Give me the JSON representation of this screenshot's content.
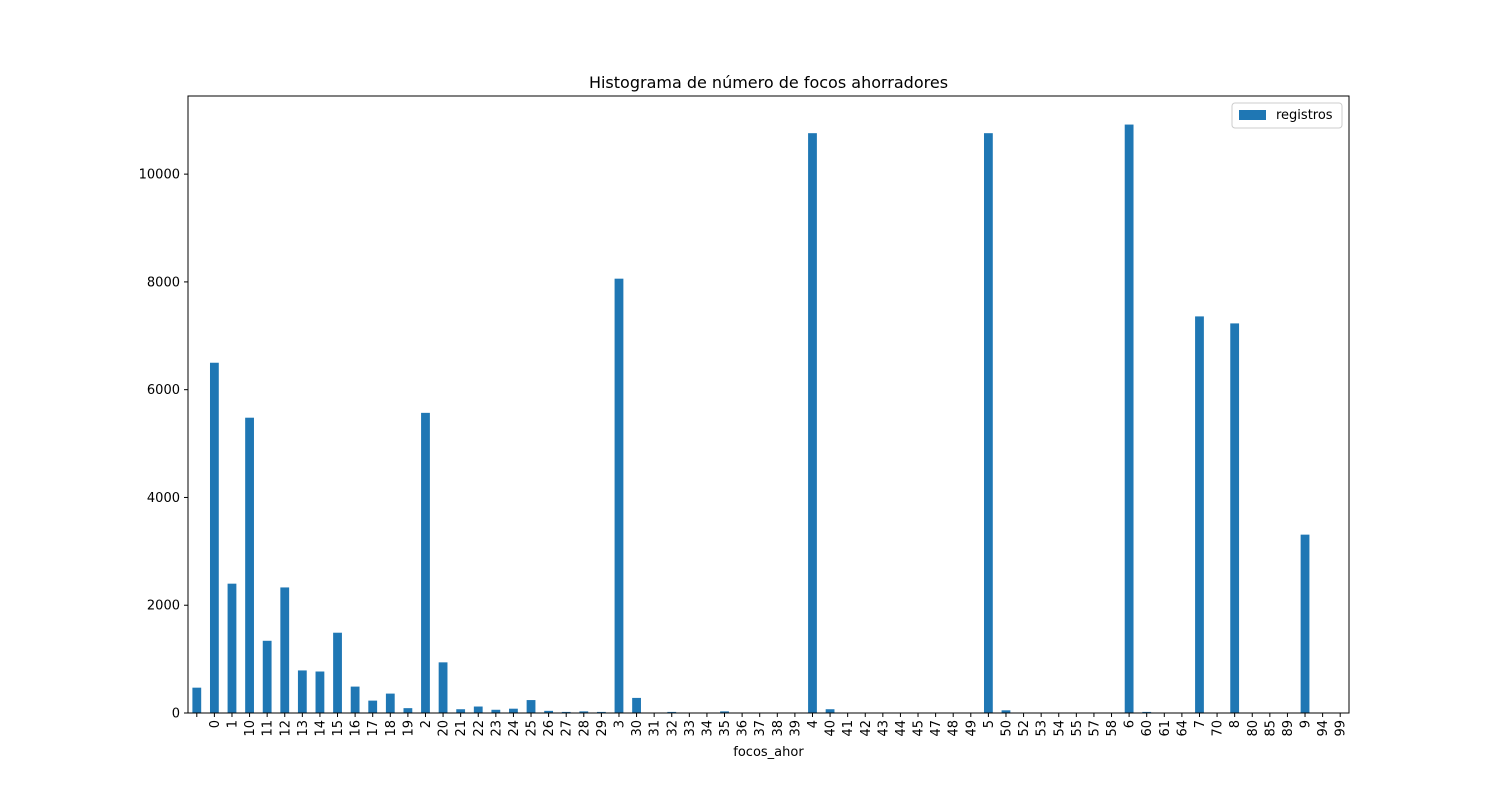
{
  "chart_data": {
    "type": "bar",
    "title": "Histograma de número de focos ahorradores",
    "xlabel": "focos_ahor",
    "ylabel": "",
    "ylim": [
      0,
      11450
    ],
    "yticks": [
      0,
      2000,
      4000,
      6000,
      8000,
      10000
    ],
    "grid": false,
    "legend_position": "top-right",
    "colors": {
      "bar": "#1f77b4",
      "axis": "#000000",
      "background": "#ffffff"
    },
    "categories": [
      "",
      "0",
      "1",
      "10",
      "11",
      "12",
      "13",
      "14",
      "15",
      "16",
      "17",
      "18",
      "19",
      "2",
      "20",
      "21",
      "22",
      "23",
      "24",
      "25",
      "26",
      "27",
      "28",
      "29",
      "3",
      "30",
      "31",
      "32",
      "33",
      "34",
      "35",
      "36",
      "37",
      "38",
      "39",
      "4",
      "40",
      "41",
      "42",
      "43",
      "44",
      "45",
      "47",
      "48",
      "49",
      "5",
      "50",
      "52",
      "53",
      "54",
      "55",
      "57",
      "58",
      "6",
      "60",
      "61",
      "64",
      "7",
      "70",
      "8",
      "80",
      "85",
      "89",
      "9",
      "94",
      "99"
    ],
    "series": [
      {
        "name": "registros",
        "values": [
          470,
          6500,
          2400,
          5480,
          1340,
          2330,
          790,
          770,
          1490,
          490,
          230,
          360,
          90,
          5570,
          940,
          70,
          120,
          60,
          80,
          240,
          40,
          20,
          30,
          20,
          8060,
          280,
          5,
          20,
          5,
          5,
          30,
          5,
          5,
          5,
          5,
          10760,
          70,
          5,
          5,
          5,
          5,
          5,
          5,
          5,
          5,
          10760,
          50,
          5,
          5,
          5,
          5,
          5,
          5,
          10920,
          20,
          5,
          5,
          7360,
          5,
          7230,
          5,
          5,
          5,
          3310,
          5,
          5
        ]
      }
    ]
  }
}
